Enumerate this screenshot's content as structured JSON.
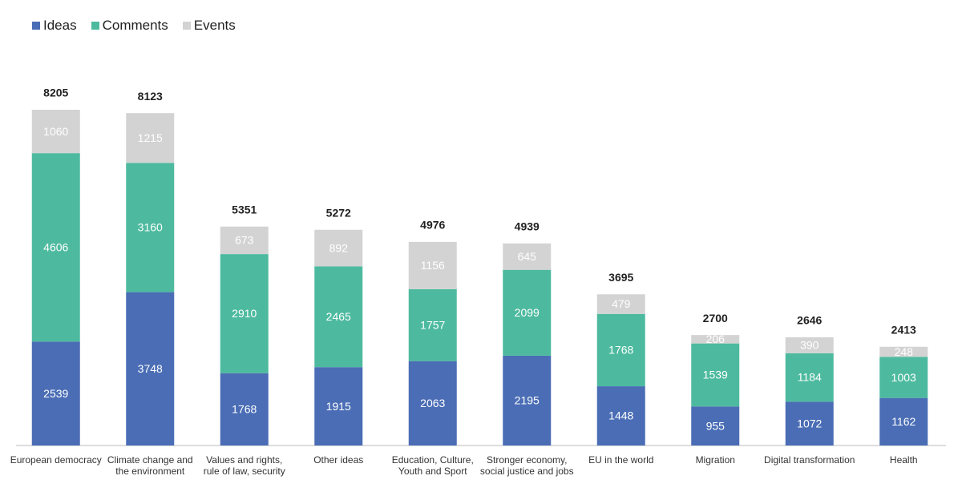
{
  "chart_data": {
    "type": "stacked-bar",
    "categories": [
      "European democracy",
      "Climate change and the environment",
      "Values and rights, rule of law, security",
      "Other ideas",
      "Education, Culture, Youth and Sport",
      "Stronger economy, social justice and jobs",
      "EU in the world",
      "Migration",
      "Digital transformation",
      "Health"
    ],
    "series": [
      {
        "name": "Ideas",
        "color": "#4a6db5",
        "values": [
          2539,
          3748,
          1768,
          1915,
          2063,
          2195,
          1448,
          955,
          1072,
          1162
        ]
      },
      {
        "name": "Comments",
        "color": "#4dba9f",
        "values": [
          4606,
          3160,
          2910,
          2465,
          1757,
          2099,
          1768,
          1539,
          1184,
          1003
        ]
      },
      {
        "name": "Events",
        "color": "#d3d3d3",
        "values": [
          1060,
          1215,
          673,
          892,
          1156,
          645,
          479,
          206,
          390,
          248
        ]
      }
    ],
    "totals": [
      8205,
      8123,
      5351,
      5272,
      4976,
      4939,
      3695,
      2700,
      2646,
      2413
    ],
    "legend": "top-left"
  }
}
